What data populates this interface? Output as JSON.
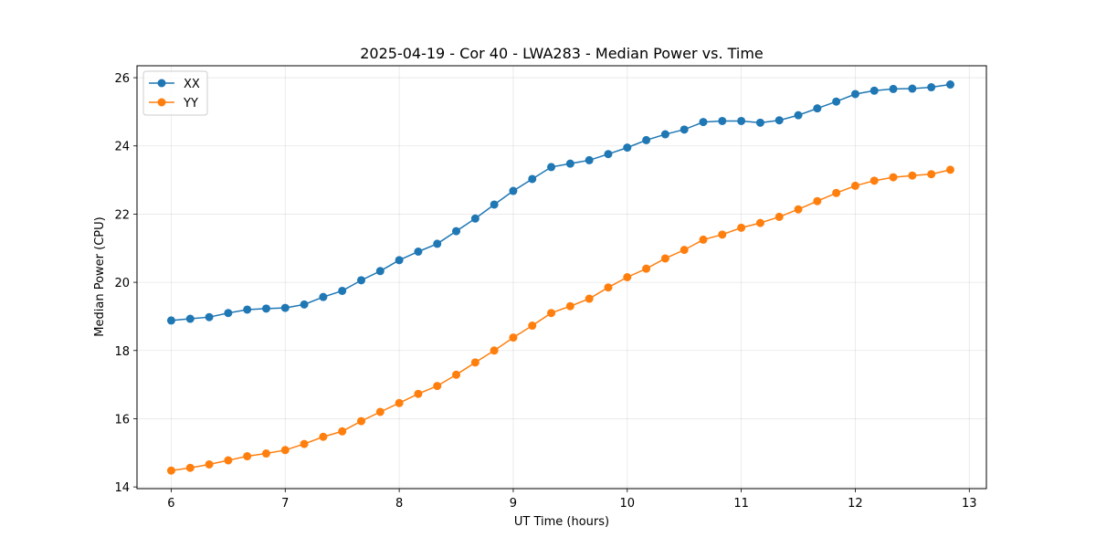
{
  "chart_data": {
    "type": "line",
    "title": "2025-04-19 - Cor 40 - LWA283 - Median Power vs. Time",
    "xlabel": "UT Time (hours)",
    "ylabel": "Median Power (CPU)",
    "xlim": [
      5.7,
      13.15
    ],
    "ylim": [
      13.95,
      26.35
    ],
    "xticks": [
      6,
      7,
      8,
      9,
      10,
      11,
      12,
      13
    ],
    "yticks": [
      14,
      16,
      18,
      20,
      22,
      24,
      26
    ],
    "grid": true,
    "legend_position": "top-left",
    "x": [
      6.0,
      6.1667,
      6.3333,
      6.5,
      6.6667,
      6.8333,
      7.0,
      7.1667,
      7.3333,
      7.5,
      7.6667,
      7.8333,
      8.0,
      8.1667,
      8.3333,
      8.5,
      8.6667,
      8.8333,
      9.0,
      9.1667,
      9.3333,
      9.5,
      9.6667,
      9.8333,
      10.0,
      10.1667,
      10.3333,
      10.5,
      10.6667,
      10.8333,
      11.0,
      11.1667,
      11.3333,
      11.5,
      11.6667,
      11.8333,
      12.0,
      12.1667,
      12.3333,
      12.5,
      12.6667,
      12.8333
    ],
    "series": [
      {
        "name": "XX",
        "color": "#1f77b4",
        "values": [
          18.88,
          18.93,
          18.98,
          19.1,
          19.2,
          19.23,
          19.25,
          19.35,
          19.57,
          19.75,
          20.06,
          20.33,
          20.65,
          20.9,
          21.13,
          21.5,
          21.87,
          22.28,
          22.68,
          23.03,
          23.38,
          23.48,
          23.58,
          23.76,
          23.95,
          24.17,
          24.34,
          24.48,
          24.7,
          24.73,
          24.73,
          24.68,
          24.75,
          24.9,
          25.1,
          25.3,
          25.52,
          25.62,
          25.67,
          25.68,
          25.72,
          25.8
        ]
      },
      {
        "name": "YY",
        "color": "#ff7f0e",
        "values": [
          14.48,
          14.56,
          14.66,
          14.78,
          14.9,
          14.98,
          15.08,
          15.26,
          15.47,
          15.63,
          15.93,
          16.2,
          16.46,
          16.73,
          16.96,
          17.29,
          17.65,
          18.0,
          18.38,
          18.73,
          19.1,
          19.3,
          19.52,
          19.85,
          20.15,
          20.4,
          20.7,
          20.95,
          21.25,
          21.4,
          21.6,
          21.74,
          21.92,
          22.14,
          22.38,
          22.62,
          22.83,
          22.98,
          23.08,
          23.13,
          23.17,
          23.3
        ]
      }
    ]
  }
}
